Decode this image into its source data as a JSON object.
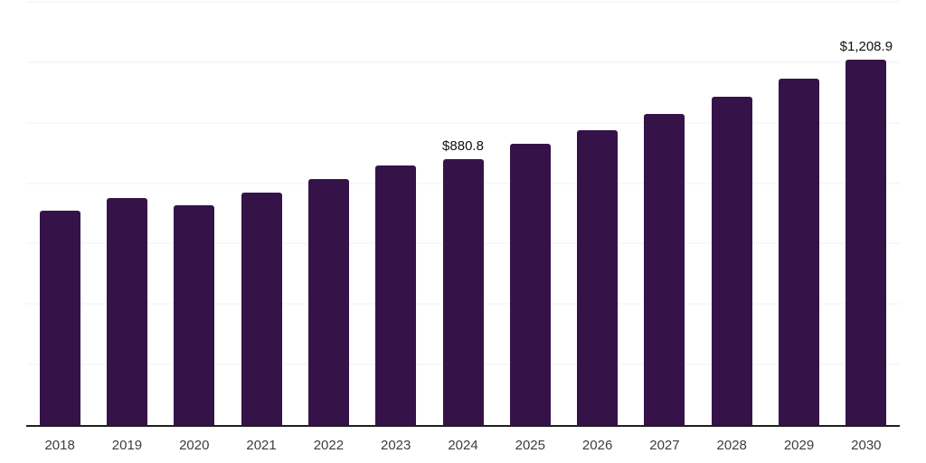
{
  "chart": {
    "background": "#ffffff",
    "bar_color": "#351349",
    "gridline_color": "#f2f2f5",
    "axis_line_color": "#202020",
    "tick_label_color": "#3d3d3d",
    "data_label_color": "#111111"
  },
  "chart_data": {
    "type": "bar",
    "title": "",
    "xlabel": "",
    "ylabel": "",
    "categories": [
      "2018",
      "2019",
      "2020",
      "2021",
      "2022",
      "2023",
      "2024",
      "2025",
      "2026",
      "2027",
      "2028",
      "2029",
      "2030"
    ],
    "values": [
      710,
      751,
      727,
      770,
      815,
      858,
      880.8,
      929,
      975,
      1028,
      1085,
      1147,
      1208.9
    ],
    "data_labels": [
      {
        "category": "2024",
        "text": "$880.8"
      },
      {
        "category": "2030",
        "text": "$1,208.9"
      }
    ],
    "ylim": [
      0,
      1400
    ],
    "gridline_step": 200,
    "grid": "horizontal",
    "legend": "none",
    "y_axis_labels_visible": false
  }
}
